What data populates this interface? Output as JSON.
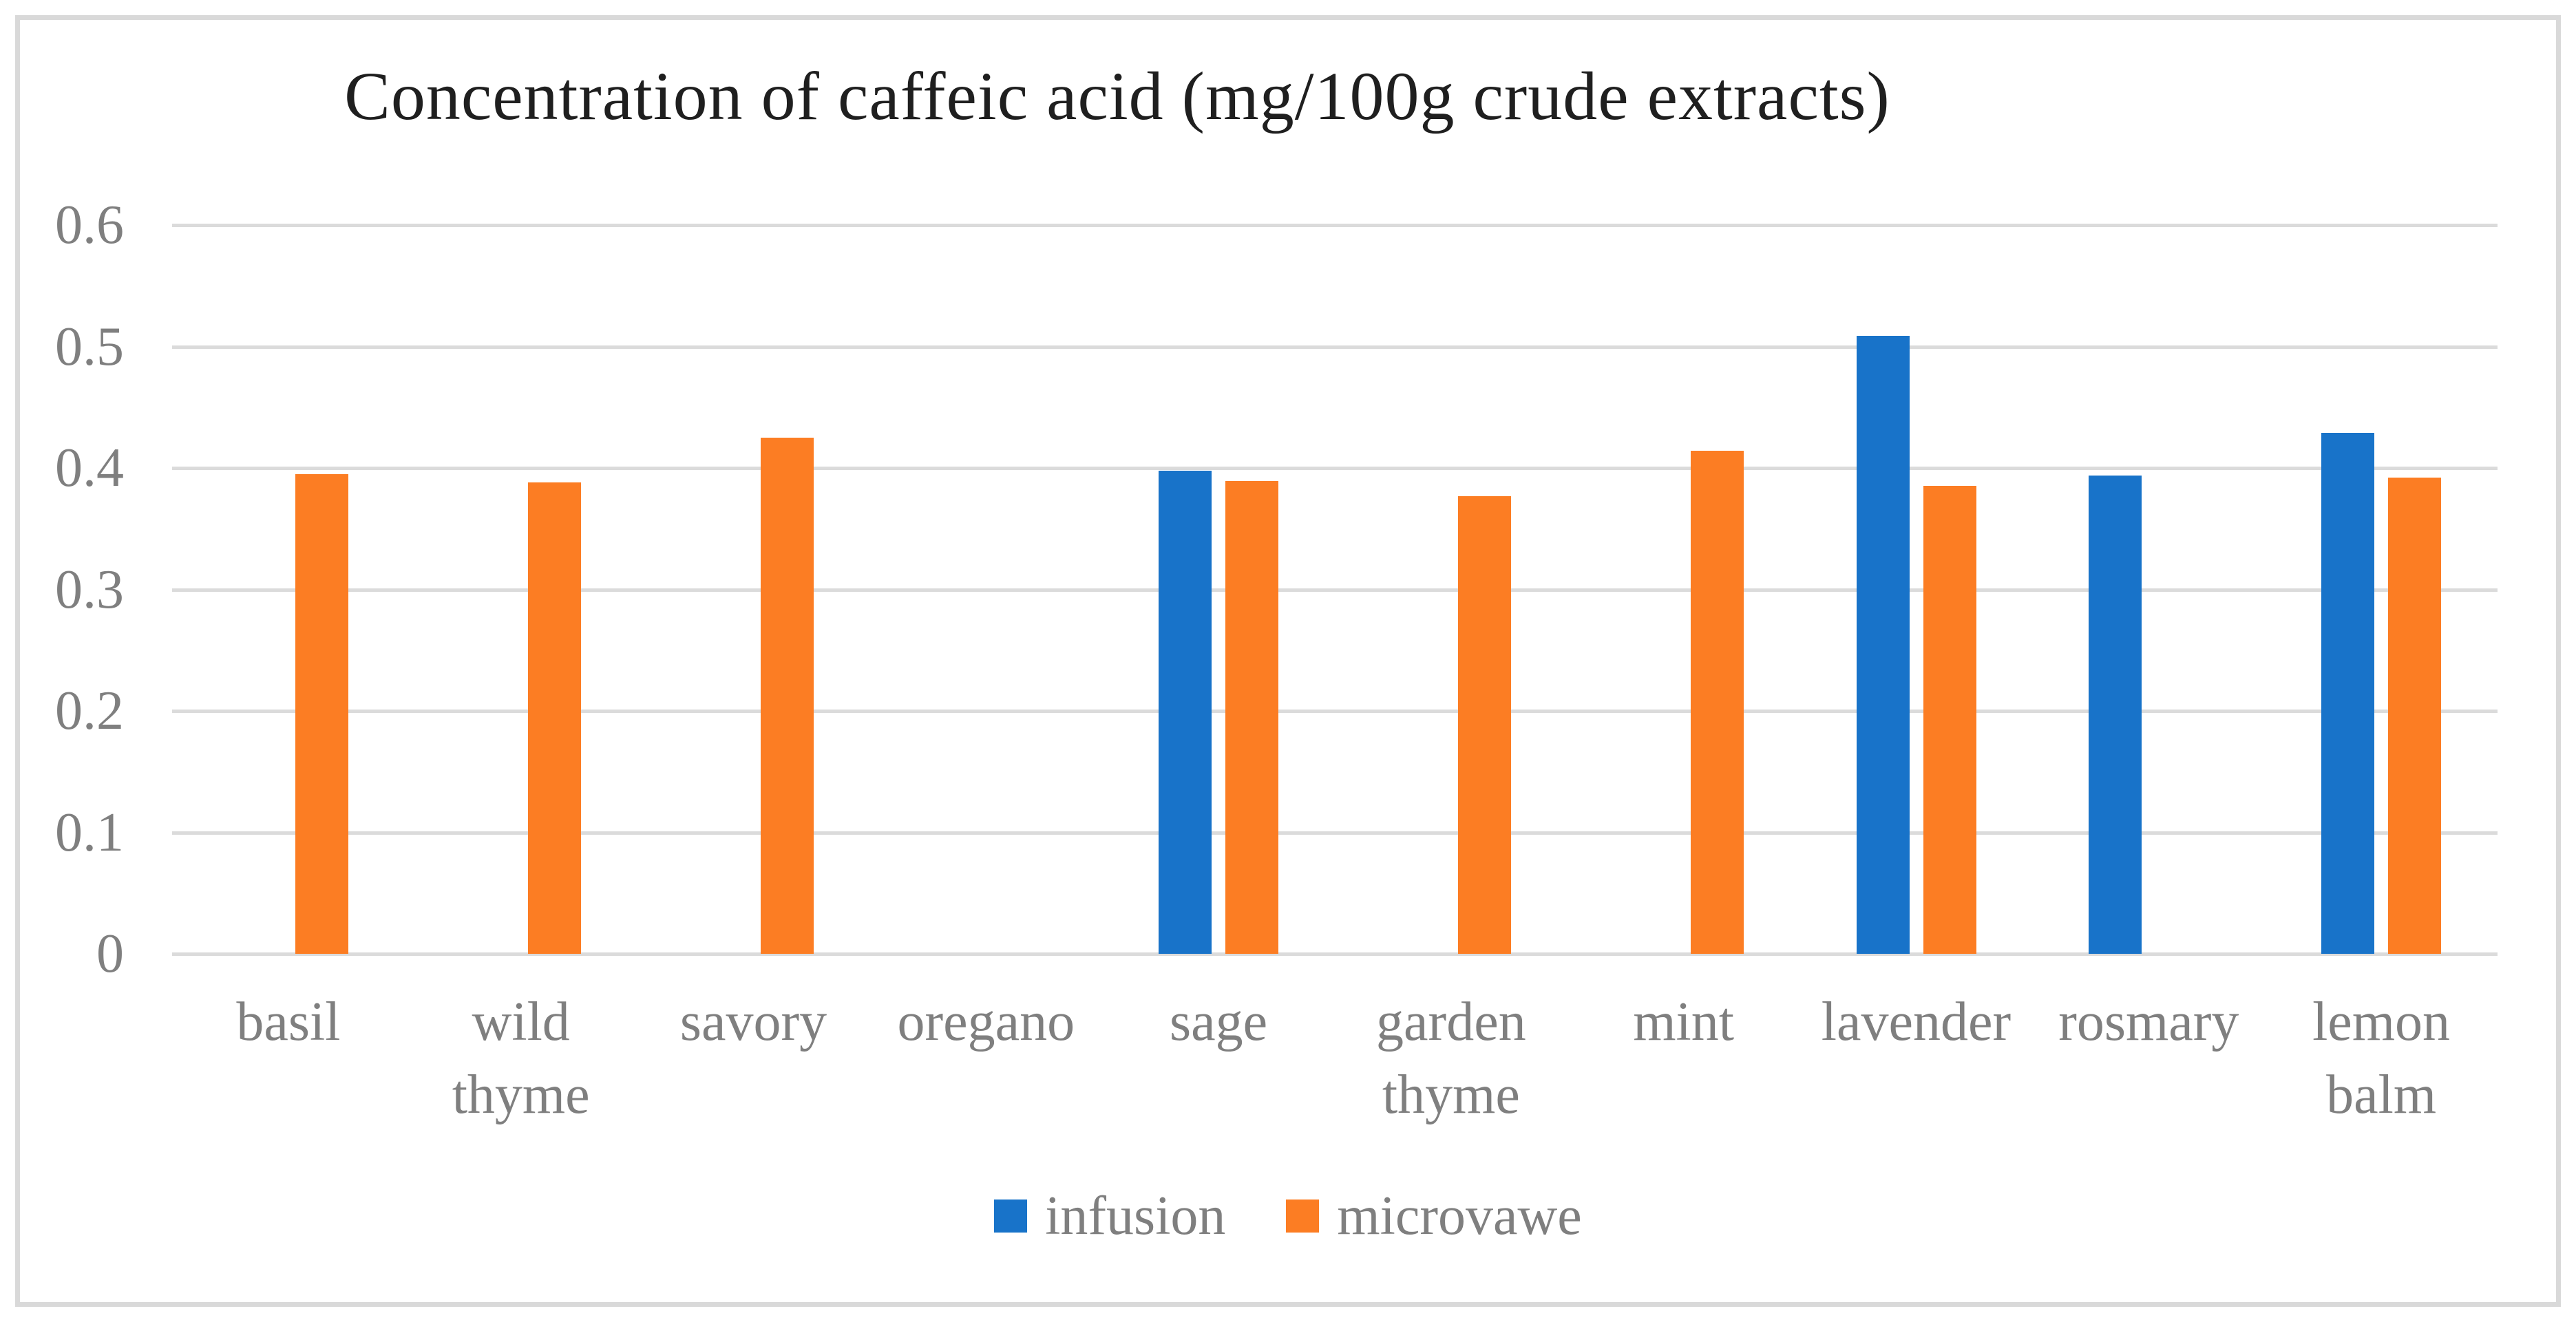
{
  "chart_data": {
    "type": "bar",
    "title": "Concentration of caffeic acid (mg/100g crude extracts)",
    "categories": [
      "basil",
      "wild thyme",
      "savory",
      "oregano",
      "sage",
      "garden thyme",
      "mint",
      "lavender",
      "rosmary",
      "lemon balm"
    ],
    "series": [
      {
        "name": "infusion",
        "color": "#1873C9",
        "values": [
          null,
          null,
          null,
          null,
          0.398,
          null,
          null,
          0.509,
          0.394,
          0.429
        ]
      },
      {
        "name": "microvawe",
        "color": "#FC7D23",
        "values": [
          0.395,
          0.388,
          0.425,
          null,
          0.389,
          0.377,
          0.414,
          0.385,
          null,
          0.392
        ]
      }
    ],
    "ylim": [
      0,
      0.6
    ],
    "yticks": [
      0,
      0.1,
      0.2,
      0.3,
      0.4,
      0.5,
      0.6
    ],
    "ytick_labels": [
      "0",
      "0.1",
      "0.2",
      "0.3",
      "0.4",
      "0.5",
      "0.6"
    ],
    "grid": true,
    "legend_position": "bottom",
    "xlabel": "",
    "ylabel": "",
    "colors": {
      "grid": "#DBDBDB",
      "frame_border": "#D9D9D9",
      "axis_text": "#7F7F7F",
      "title_text": "#1F1F1F",
      "background": "#FFFFFF"
    }
  }
}
